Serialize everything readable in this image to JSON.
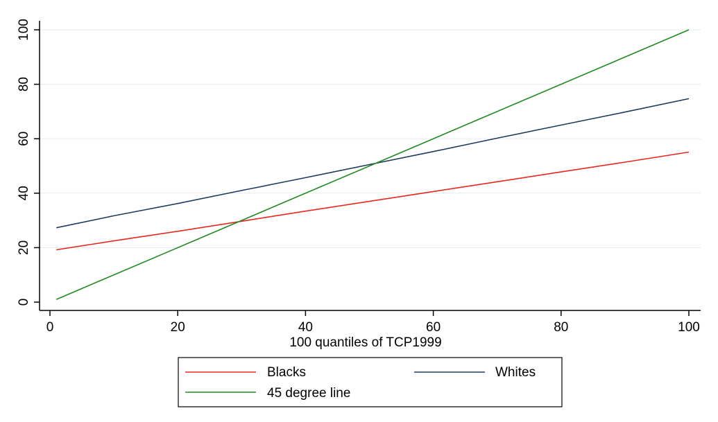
{
  "chart_data": {
    "type": "line",
    "xlabel": "100 quantiles of TCP1999",
    "ylabel": "",
    "xlim": [
      0,
      100
    ],
    "ylim": [
      0,
      100
    ],
    "xticks": [
      0,
      20,
      40,
      60,
      80,
      100
    ],
    "yticks": [
      0,
      20,
      40,
      60,
      80,
      100
    ],
    "grid": "horizontal",
    "legend_placement": "bottom",
    "series": [
      {
        "name": "Blacks",
        "color": "#e8271c",
        "x": [
          1,
          10,
          20,
          30,
          40,
          50,
          60,
          70,
          80,
          90,
          100
        ],
        "y": [
          19.2,
          22.5,
          26.0,
          29.7,
          33.4,
          37.0,
          40.6,
          44.2,
          47.8,
          51.4,
          55.1
        ]
      },
      {
        "name": "Whites",
        "color": "#1c3a5e",
        "x": [
          1,
          10,
          20,
          30,
          40,
          50,
          60,
          70,
          80,
          90,
          100
        ],
        "y": [
          27.3,
          31.7,
          36.2,
          41.0,
          45.7,
          50.5,
          55.3,
          60.2,
          65.0,
          69.8,
          74.7
        ]
      },
      {
        "name": "45 degree line",
        "color": "#1e8a1e",
        "x": [
          1,
          100
        ],
        "y": [
          1,
          100
        ]
      }
    ]
  }
}
